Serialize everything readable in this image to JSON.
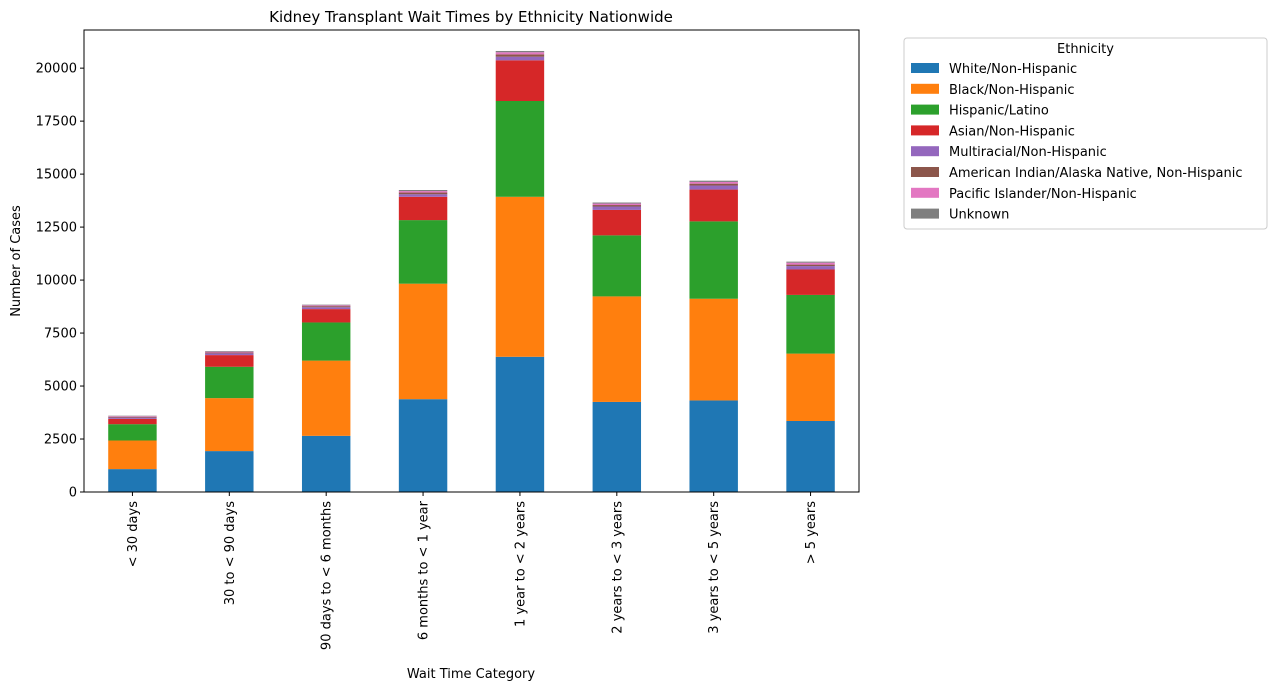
{
  "chart_data": {
    "type": "bar",
    "stacked": true,
    "title": "Kidney Transplant Wait Times by Ethnicity Nationwide",
    "xlabel": "Wait Time Category",
    "ylabel": "Number of Cases",
    "ylim": [
      0,
      21800
    ],
    "yticks": [
      0,
      2500,
      5000,
      7500,
      10000,
      12500,
      15000,
      17500,
      20000
    ],
    "grid": false,
    "legend": {
      "title": "Ethnicity",
      "placement": "outside-upper-right"
    },
    "categories": [
      "< 30 days",
      "30 to < 90 days",
      "90 days to < 6 months",
      "6 months to < 1 year",
      "1 year to < 2 years",
      "2 years to < 3 years",
      "3 years to < 5 years",
      "> 5 years"
    ],
    "series": [
      {
        "name": "White/Non-Hispanic",
        "color": "#1f77b4",
        "values": [
          1080,
          1930,
          2650,
          4380,
          6380,
          4250,
          4320,
          3350
        ]
      },
      {
        "name": "Black/Non-Hispanic",
        "color": "#ff7f0e",
        "values": [
          1350,
          2500,
          3550,
          5450,
          7550,
          4980,
          4800,
          3180
        ]
      },
      {
        "name": "Hispanic/Latino",
        "color": "#2ca02c",
        "values": [
          770,
          1480,
          1800,
          3000,
          4520,
          2880,
          3650,
          2770
        ]
      },
      {
        "name": "Asian/Non-Hispanic",
        "color": "#d62728",
        "values": [
          250,
          550,
          630,
          1100,
          1920,
          1200,
          1500,
          1200
        ]
      },
      {
        "name": "Multiracial/Non-Hispanic",
        "color": "#9467bd",
        "values": [
          60,
          80,
          90,
          120,
          170,
          160,
          190,
          160
        ]
      },
      {
        "name": "American Indian/Alaska Native, Non-Hispanic",
        "color": "#8c564b",
        "values": [
          40,
          40,
          50,
          80,
          110,
          70,
          90,
          70
        ]
      },
      {
        "name": "Pacific Islander/Non-Hispanic",
        "color": "#e377c2",
        "values": [
          30,
          40,
          40,
          70,
          100,
          70,
          80,
          90
        ]
      },
      {
        "name": "Unknown",
        "color": "#7f7f7f",
        "values": [
          20,
          30,
          30,
          50,
          60,
          50,
          60,
          50
        ]
      }
    ]
  }
}
